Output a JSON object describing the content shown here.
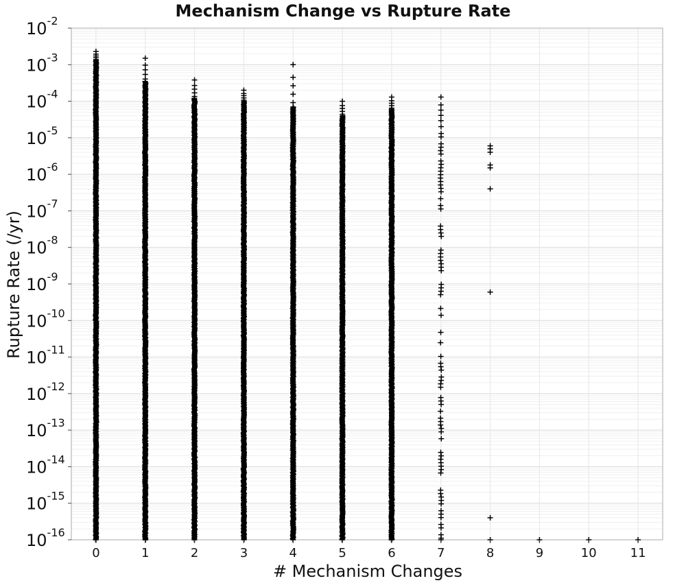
{
  "chart_data": {
    "type": "scatter",
    "title": "Mechanism Change vs Rupture Rate",
    "xlabel": "# Mechanism Changes",
    "ylabel": "Rupture Rate (/yr)",
    "x_ticks": [
      "0",
      "1",
      "2",
      "3",
      "4",
      "5",
      "6",
      "7",
      "8",
      "9",
      "10",
      "11"
    ],
    "y_ticks": [
      {
        "base": "10",
        "exp": "-2"
      },
      {
        "base": "10",
        "exp": "-3"
      },
      {
        "base": "10",
        "exp": "-4"
      },
      {
        "base": "10",
        "exp": "-5"
      },
      {
        "base": "10",
        "exp": "-6"
      },
      {
        "base": "10",
        "exp": "-7"
      },
      {
        "base": "10",
        "exp": "-8"
      },
      {
        "base": "10",
        "exp": "-9"
      },
      {
        "base": "10",
        "exp": "-10"
      },
      {
        "base": "10",
        "exp": "-11"
      },
      {
        "base": "10",
        "exp": "-12"
      },
      {
        "base": "10",
        "exp": "-13"
      },
      {
        "base": "10",
        "exp": "-14"
      },
      {
        "base": "10",
        "exp": "-15"
      },
      {
        "base": "10",
        "exp": "-16"
      }
    ],
    "y_scale": "log",
    "xlim": [
      -0.5,
      11.5
    ],
    "ylim": [
      1e-16,
      0.01
    ],
    "grid": true,
    "marker": "+",
    "marker_color": "#000000",
    "series": [
      {
        "x": 0,
        "y_max": 0.0023,
        "y_min": 1e-16,
        "dense_min": 1e-16,
        "dense_max": 0.0013
      },
      {
        "x": 1,
        "y_max": 0.0015,
        "y_min": 1e-16,
        "dense_min": 1e-16,
        "dense_max": 0.00035
      },
      {
        "x": 2,
        "y_max": 0.00038,
        "y_min": 1e-16,
        "dense_min": 1e-16,
        "dense_max": 0.00012
      },
      {
        "x": 3,
        "y_max": 0.0002,
        "y_min": 1e-16,
        "dense_min": 1e-16,
        "dense_max": 0.0001
      },
      {
        "x": 4,
        "y_max": 0.001,
        "y_min": 1e-16,
        "dense_min": 1e-16,
        "dense_max": 7e-05
      },
      {
        "x": 5,
        "y_max": 0.0001,
        "y_min": 1e-16,
        "dense_min": 1e-16,
        "dense_max": 4e-05
      },
      {
        "x": 6,
        "y_max": 0.00013,
        "y_min": 1e-16,
        "dense_min": 1e-16,
        "dense_max": 6e-05
      },
      {
        "x": 7,
        "y_max": 0.00013,
        "y_min": 1e-16,
        "dense_min": 1e-16,
        "dense_max": 2.5e-05,
        "sparse": true
      },
      {
        "x": 8,
        "points": [
          6e-06,
          5e-06,
          4e-06,
          1.8e-06,
          1.5e-06,
          4e-07,
          6e-10,
          4e-16,
          1e-16
        ]
      },
      {
        "x": 9,
        "points": [
          1e-16
        ]
      },
      {
        "x": 10,
        "points": [
          1e-16
        ]
      },
      {
        "x": 11,
        "points": [
          1e-16
        ]
      }
    ]
  }
}
